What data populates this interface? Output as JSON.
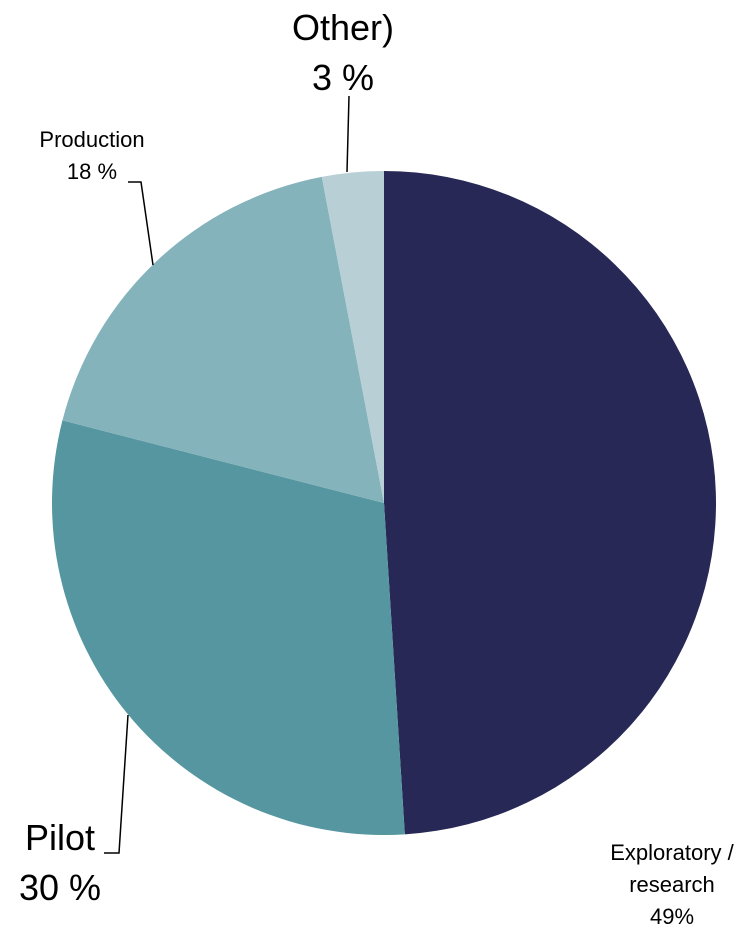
{
  "chart_data": {
    "type": "pie",
    "categories": [
      "Exploratory / research",
      "Pilot",
      "Production",
      "Other)"
    ],
    "values": [
      49,
      30,
      18,
      3
    ],
    "value_labels": [
      "49%",
      "30 %",
      "18 %",
      "3 %"
    ],
    "colors": [
      "#272855",
      "#5596a0",
      "#84b3bc",
      "#b7cfd5"
    ]
  }
}
